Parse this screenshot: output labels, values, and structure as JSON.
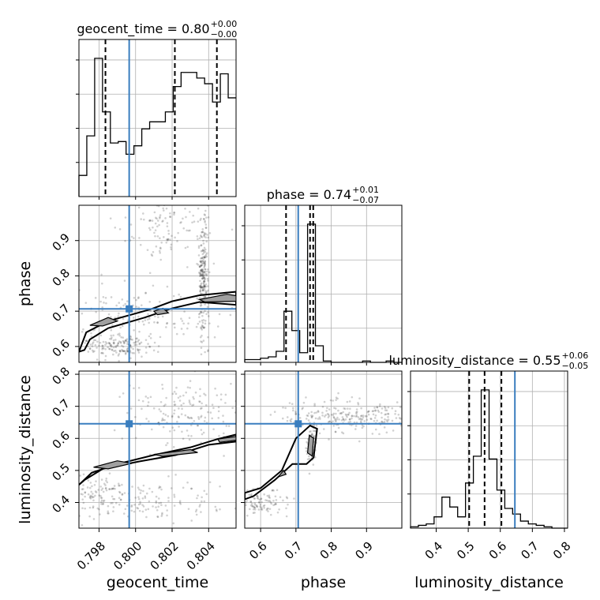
{
  "chart_data": {
    "type": "corner",
    "parameters": [
      "geocent_time",
      "phase",
      "luminosity_distance"
    ],
    "axis_ranges": {
      "geocent_time": [
        0.7969,
        0.8055
      ],
      "phase": [
        0.555,
        1.0
      ],
      "luminosity_distance": [
        0.32,
        0.81
      ]
    },
    "ticks": {
      "geocent_time": [
        "0.798",
        "0.800",
        "0.802",
        "0.804"
      ],
      "phase": [
        "0.6",
        "0.7",
        "0.8",
        "0.9"
      ],
      "luminosity_distance": [
        "0.4",
        "0.5",
        "0.6",
        "0.7",
        "0.8"
      ]
    },
    "titles": [
      {
        "param": "geocent_time",
        "prefix": "geocent_time = 0.80",
        "upper": "+0.00",
        "lower": "−0.00"
      },
      {
        "param": "phase",
        "prefix": "phase = 0.74",
        "upper": "+0.01",
        "lower": "−0.07"
      },
      {
        "param": "luminosity_distance",
        "prefix": "luminosity_distance = 0.55",
        "upper": "+0.06",
        "lower": "−0.05"
      }
    ],
    "truths": {
      "geocent_time": 0.79965,
      "phase": 0.7065,
      "luminosity_distance": 0.6455
    },
    "quantiles": {
      "geocent_time": [
        0.79835,
        0.80215,
        0.80445
      ],
      "phase": [
        0.672,
        0.74,
        0.749
      ],
      "luminosity_distance": [
        0.503,
        0.551,
        0.6035
      ]
    },
    "histograms": {
      "geocent_time": {
        "edges": [
          0.7969,
          0.79733,
          0.79776,
          0.79819,
          0.79862,
          0.79905,
          0.79948,
          0.79991,
          0.80034,
          0.80077,
          0.8012,
          0.80163,
          0.80206,
          0.80249,
          0.80292,
          0.80335,
          0.80378,
          0.80421,
          0.80464,
          0.80507,
          0.8055
        ],
        "counts": [
          0.15,
          0.43,
          0.98,
          0.6,
          0.38,
          0.39,
          0.3,
          0.36,
          0.48,
          0.53,
          0.53,
          0.6,
          0.78,
          0.88,
          0.88,
          0.84,
          0.8,
          0.67,
          0.87,
          0.7
        ]
      },
      "phase": {
        "edges": [
          0.555,
          0.5772,
          0.5995,
          0.6218,
          0.644,
          0.6662,
          0.6885,
          0.7107,
          0.733,
          0.7552,
          0.7775,
          0.7998,
          0.822,
          0.8442,
          0.8665,
          0.8888,
          0.911,
          0.9332,
          0.9555,
          0.9777,
          1.0
        ],
        "counts": [
          0.02,
          0.02,
          0.03,
          0.04,
          0.08,
          0.37,
          0.23,
          0.07,
          1.0,
          0.12,
          0.01,
          0.0,
          0.0,
          0.0,
          0.0,
          0.01,
          0.0,
          0.0,
          0.01,
          0.0
        ]
      },
      "luminosity_distance": {
        "edges": [
          0.32,
          0.3445,
          0.369,
          0.3935,
          0.418,
          0.4425,
          0.467,
          0.4915,
          0.516,
          0.5405,
          0.565,
          0.5895,
          0.614,
          0.6385,
          0.663,
          0.6875,
          0.712,
          0.7365,
          0.761,
          0.7855,
          0.81
        ],
        "counts": [
          0.01,
          0.02,
          0.03,
          0.08,
          0.22,
          0.15,
          0.08,
          0.32,
          0.51,
          0.98,
          0.49,
          0.27,
          0.14,
          0.1,
          0.05,
          0.03,
          0.02,
          0.01,
          0.0,
          0.0
        ]
      }
    },
    "pairs": [
      {
        "x": "geocent_time",
        "y": "phase"
      },
      {
        "x": "geocent_time",
        "y": "luminosity_distance"
      },
      {
        "x": "phase",
        "y": "luminosity_distance"
      }
    ]
  }
}
